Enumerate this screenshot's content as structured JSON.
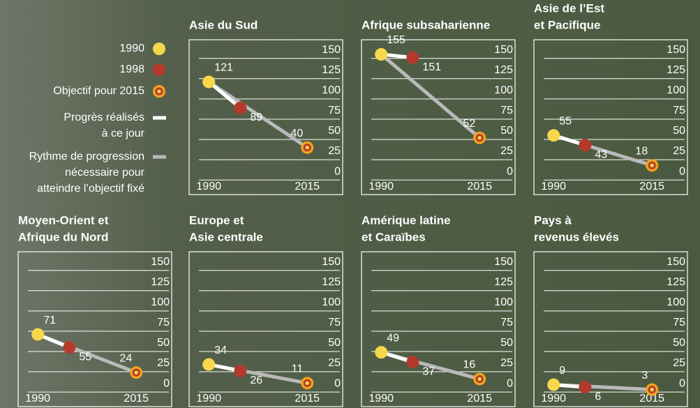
{
  "legend": {
    "items": [
      {
        "lines": [
          "1990"
        ],
        "color": "#f6d84a"
      },
      {
        "lines": [
          "1998"
        ],
        "color": "#b63a2b"
      },
      {
        "lines": [
          "Objectif pour 2015"
        ],
        "color": "#f2a31b"
      },
      {
        "lines": [
          "Progrès réalisés",
          "à ce jour"
        ],
        "color": "#ffffff"
      },
      {
        "lines": [
          "Rythme de progression",
          "nécessaire pour",
          "atteindre l’objectif fixé"
        ],
        "color": "#b9b9b9"
      }
    ]
  },
  "chart_data": [
    {
      "type": "line",
      "title": [
        "Asie du Sud"
      ],
      "x": [
        1990,
        1998,
        2015
      ],
      "values": [
        121,
        89,
        40
      ],
      "xlim": [
        1985,
        2024
      ],
      "ylim": [
        -18,
        173
      ],
      "xticks": [
        1990,
        2015
      ],
      "yticks": [
        0,
        25,
        50,
        75,
        100,
        125,
        150
      ]
    },
    {
      "type": "line",
      "title": [
        "Afrique subsaharienne"
      ],
      "x": [
        1990,
        1998,
        2015
      ],
      "values": [
        155,
        151,
        52
      ],
      "xlim": [
        1985,
        2024
      ],
      "ylim": [
        -18,
        173
      ],
      "xticks": [
        1990,
        2015
      ],
      "yticks": [
        0,
        25,
        50,
        75,
        100,
        125,
        150
      ]
    },
    {
      "type": "line",
      "title": [
        "Asie de l’Est",
        "et Pacifique"
      ],
      "x": [
        1990,
        1998,
        2015
      ],
      "values": [
        55,
        43,
        18
      ],
      "xlim": [
        1985,
        2024
      ],
      "ylim": [
        -18,
        173
      ],
      "xticks": [
        1990,
        2015
      ],
      "yticks": [
        0,
        25,
        50,
        75,
        100,
        125,
        150
      ]
    },
    {
      "type": "line",
      "title": [
        "Moyen-Orient et",
        "Afrique du Nord"
      ],
      "x": [
        1990,
        1998,
        2015
      ],
      "values": [
        71,
        55,
        24
      ],
      "xlim": [
        1985,
        2024
      ],
      "ylim": [
        -18,
        173
      ],
      "xticks": [
        1990,
        2015
      ],
      "yticks": [
        0,
        25,
        50,
        75,
        100,
        125,
        150
      ]
    },
    {
      "type": "line",
      "title": [
        "Europe et",
        "Asie centrale"
      ],
      "x": [
        1990,
        1998,
        2015
      ],
      "values": [
        34,
        26,
        11
      ],
      "xlim": [
        1985,
        2024
      ],
      "ylim": [
        -18,
        173
      ],
      "xticks": [
        1990,
        2015
      ],
      "yticks": [
        0,
        25,
        50,
        75,
        100,
        125,
        150
      ]
    },
    {
      "type": "line",
      "title": [
        "Amérique latine",
        "et Caraïbes"
      ],
      "x": [
        1990,
        1998,
        2015
      ],
      "values": [
        49,
        37,
        16
      ],
      "xlim": [
        1985,
        2024
      ],
      "ylim": [
        -18,
        173
      ],
      "xticks": [
        1990,
        2015
      ],
      "yticks": [
        0,
        25,
        50,
        75,
        100,
        125,
        150
      ]
    },
    {
      "type": "line",
      "title": [
        "Pays à",
        "revenus élevés"
      ],
      "x": [
        1990,
        1998,
        2015
      ],
      "values": [
        9,
        6,
        3
      ],
      "xlim": [
        1985,
        2024
      ],
      "ylim": [
        -18,
        173
      ],
      "xticks": [
        1990,
        2015
      ],
      "yticks": [
        0,
        25,
        50,
        75,
        100,
        125,
        150
      ]
    }
  ]
}
